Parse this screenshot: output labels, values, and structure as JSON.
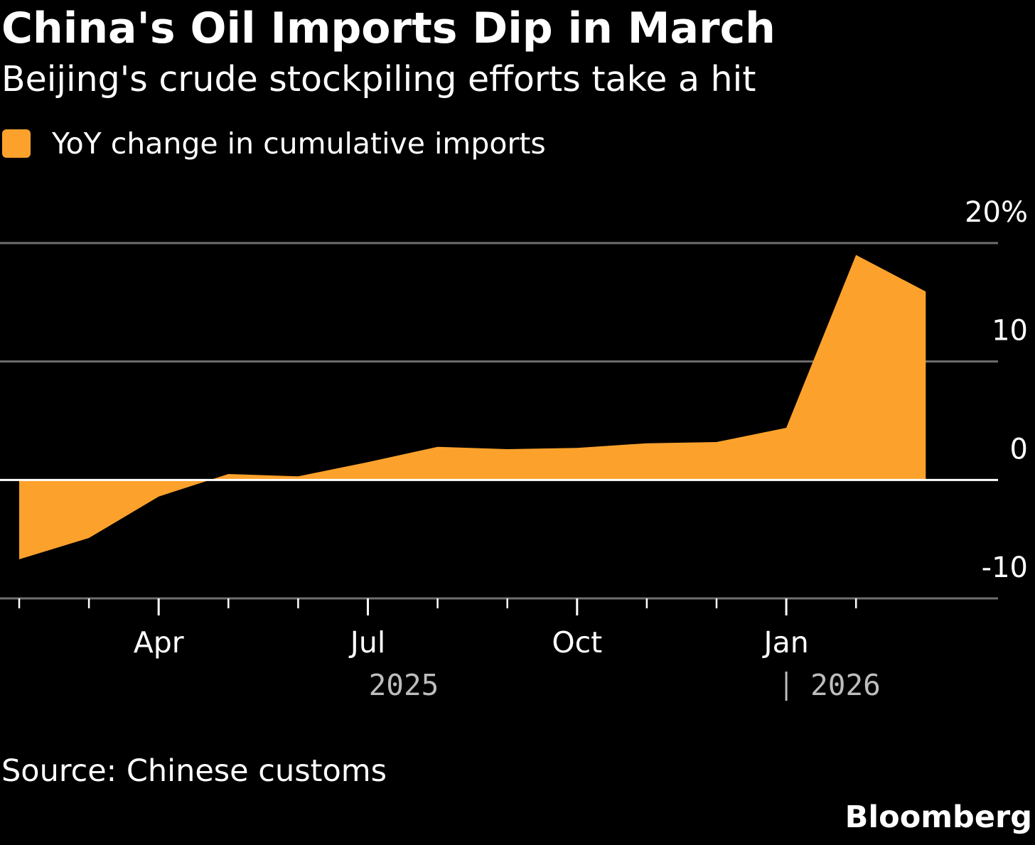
{
  "colors": {
    "background": "#000000",
    "area": "#fca22c",
    "gridline": "#6e6e6e",
    "zeroline": "#ffffff",
    "text": "#ffffff",
    "year_label": "#bdbdbd"
  },
  "chart_data": {
    "type": "area",
    "title": "China's Oil Imports Dip in March",
    "subtitle": "Beijing's crude stockpiling efforts take a hit",
    "legend": {
      "placement": "top-left",
      "entries": [
        "YoY change in cumulative imports"
      ]
    },
    "series": [
      {
        "name": "YoY change in cumulative imports",
        "x": [
          "2025-02",
          "2025-03",
          "2025-04",
          "2025-05",
          "2025-06",
          "2025-07",
          "2025-08",
          "2025-09",
          "2025-10",
          "2025-11",
          "2025-12",
          "2026-01",
          "2026-02",
          "2026-03"
        ],
        "values": [
          -6.7,
          -4.9,
          -1.4,
          0.5,
          0.3,
          1.5,
          2.8,
          2.6,
          2.7,
          3.1,
          3.2,
          4.4,
          19.0,
          15.9
        ]
      }
    ],
    "x_axis": {
      "ticks": [
        "2025-02",
        "2025-03",
        "2025-04",
        "2025-05",
        "2025-06",
        "2025-07",
        "2025-08",
        "2025-09",
        "2025-10",
        "2025-11",
        "2025-12",
        "2026-01",
        "2026-02"
      ],
      "major_ticks": [
        "2025-04",
        "2025-07",
        "2025-10",
        "2026-01"
      ],
      "tick_labels": [
        "Apr",
        "Jul",
        "Oct",
        "Jan"
      ],
      "year_labels": [
        "2025",
        "2026"
      ],
      "year_boundary": "2026-01"
    },
    "y_axis": {
      "position": "right",
      "ylim": [
        -10,
        20
      ],
      "ticks": [
        -10,
        0,
        10,
        20
      ],
      "tick_labels": [
        "-10",
        "0",
        "10",
        "20%"
      ],
      "grid": true
    },
    "source": "Source: Chinese customs"
  },
  "brand": "Bloomberg"
}
